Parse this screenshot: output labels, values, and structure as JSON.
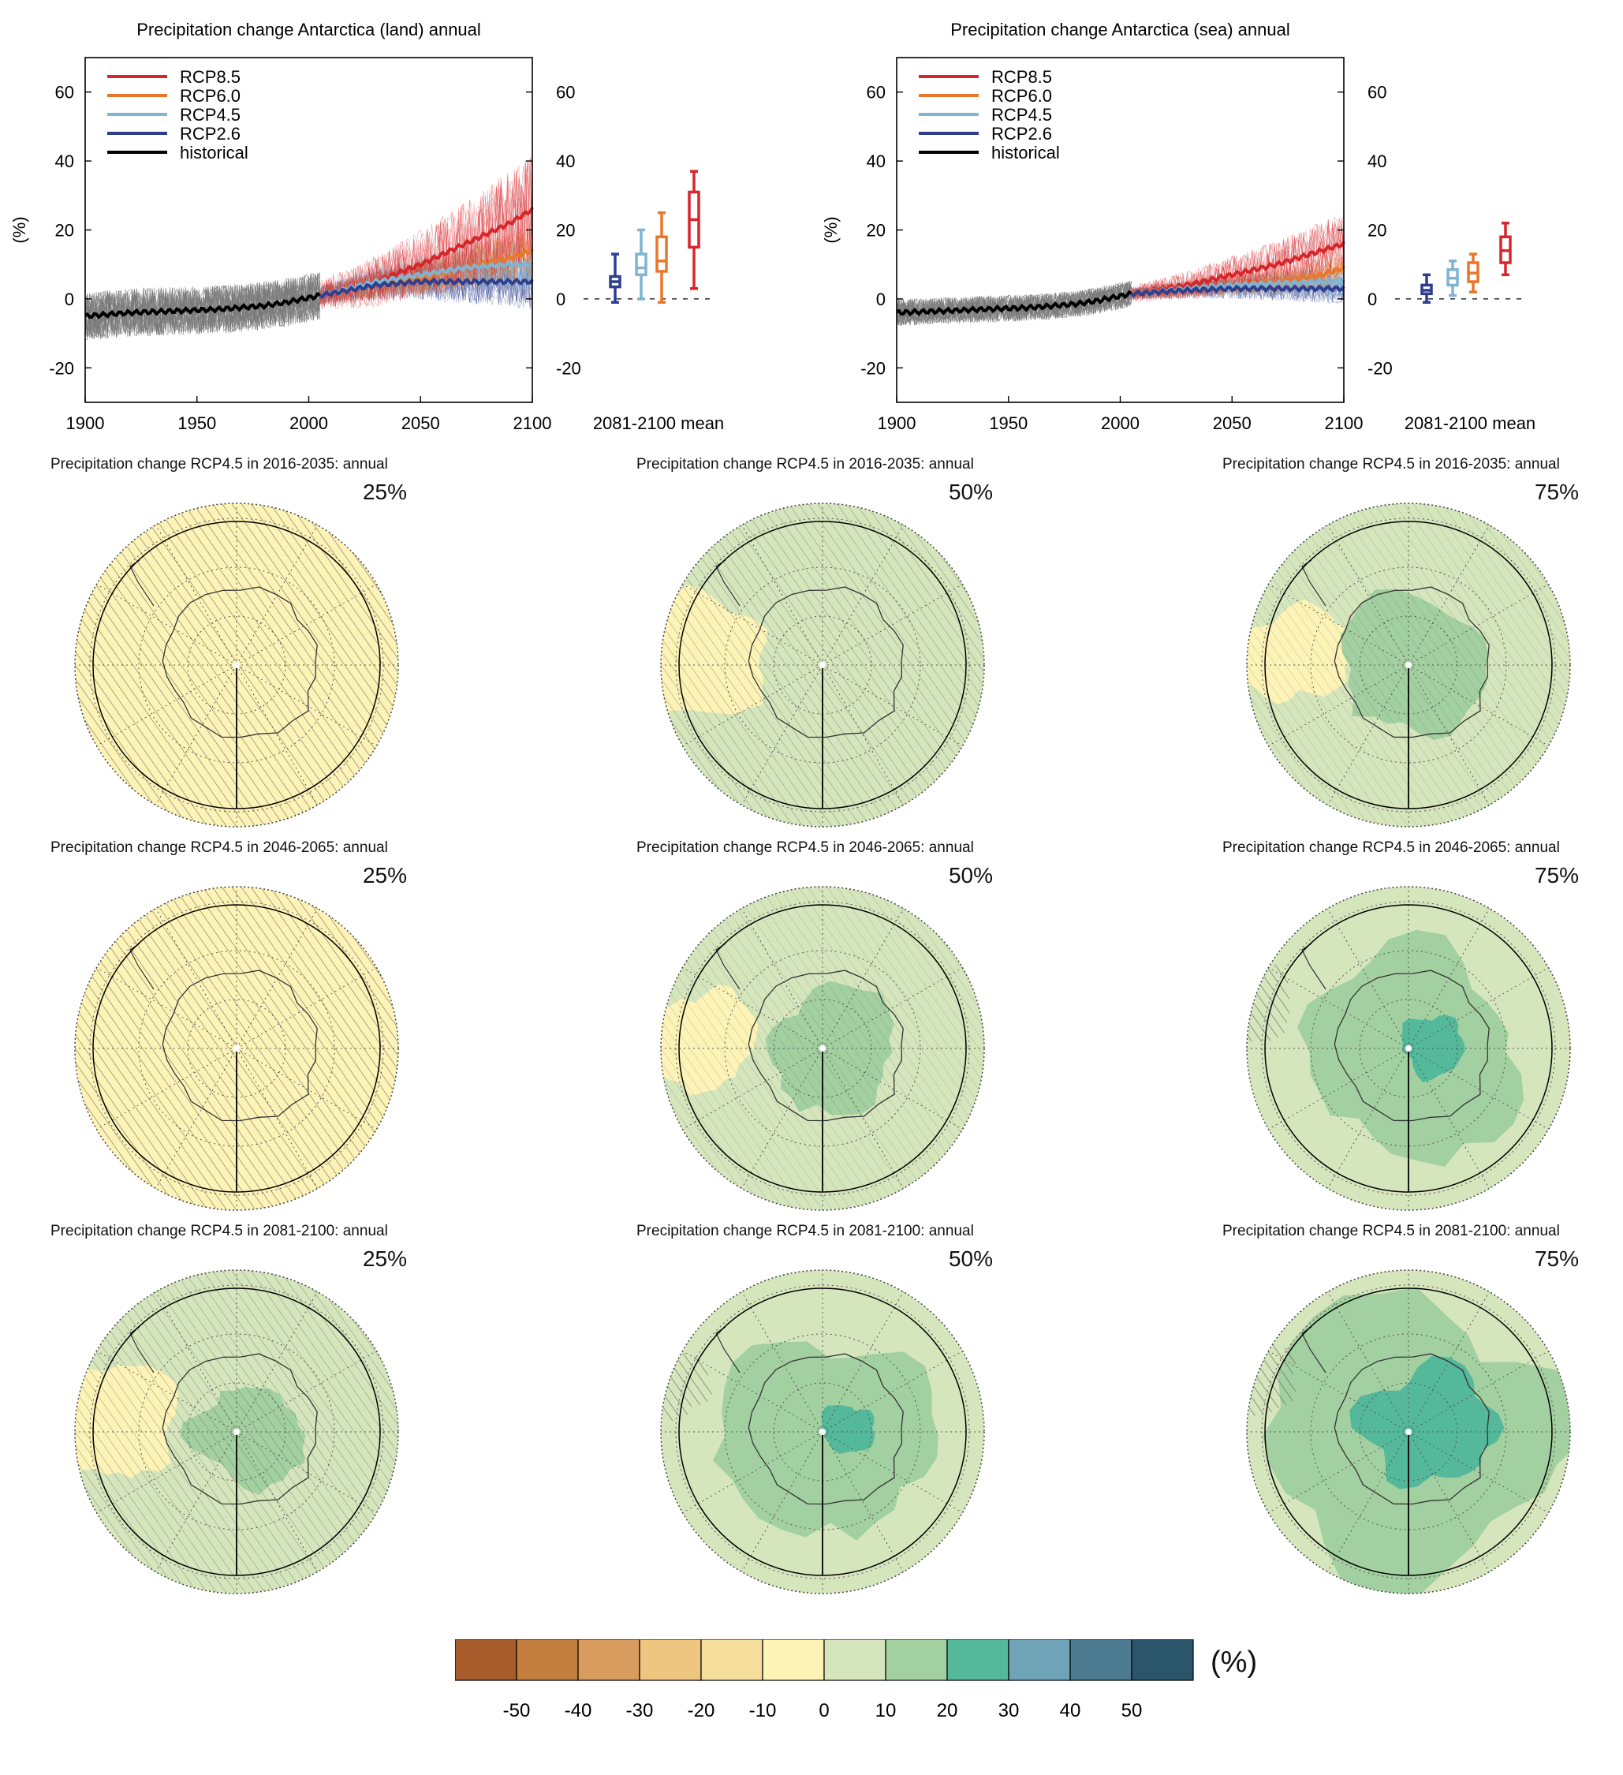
{
  "colors": {
    "rcp85": "#d7262b",
    "rcp60": "#e8772c",
    "rcp45": "#7fb4d4",
    "rcp26": "#2e3f8f",
    "historical": "#000000",
    "hist_ensemble": "#7a7a7a"
  },
  "chart_data": [
    {
      "type": "line",
      "title": "Precipitation change Antarctica (land) annual",
      "ylabel": "(%)",
      "xlim": [
        1900,
        2100
      ],
      "ylim": [
        -30,
        70
      ],
      "xticks": [
        1900,
        1950,
        2000,
        2050,
        2100
      ],
      "yticks": [
        -20,
        0,
        20,
        40,
        60
      ],
      "legend": {
        "placement": "top-left",
        "entries": [
          "RCP8.5",
          "RCP6.0",
          "RCP4.5",
          "RCP2.6",
          "historical"
        ]
      },
      "series": [
        {
          "name": "historical",
          "x": [
            1900,
            1920,
            1940,
            1960,
            1980,
            1990,
            2005
          ],
          "y": [
            -5,
            -4,
            -3.5,
            -3,
            -2,
            -1,
            1
          ]
        },
        {
          "name": "RCP8.5",
          "x": [
            2005,
            2030,
            2050,
            2070,
            2090,
            2100
          ],
          "y": [
            1,
            5,
            10,
            16,
            22,
            26
          ]
        },
        {
          "name": "RCP6.0",
          "x": [
            2005,
            2030,
            2050,
            2070,
            2090,
            2100
          ],
          "y": [
            1,
            4,
            6,
            9,
            12,
            14
          ]
        },
        {
          "name": "RCP4.5",
          "x": [
            2005,
            2030,
            2050,
            2070,
            2090,
            2100
          ],
          "y": [
            1,
            5,
            7,
            9,
            10,
            10
          ]
        },
        {
          "name": "RCP2.6",
          "x": [
            2005,
            2030,
            2050,
            2070,
            2090,
            2100
          ],
          "y": [
            1,
            4,
            5,
            5,
            5,
            5
          ]
        }
      ],
      "boxplot": {
        "label": "2081-2100 mean",
        "boxes": [
          {
            "name": "RCP2.6",
            "min": -1,
            "q1": 3.5,
            "median": 5,
            "q3": 6.5,
            "max": 13
          },
          {
            "name": "RCP4.5",
            "min": 0,
            "q1": 7,
            "median": 9,
            "q3": 13,
            "max": 20
          },
          {
            "name": "RCP6.0",
            "min": -1,
            "q1": 8,
            "median": 11,
            "q3": 18,
            "max": 25
          },
          {
            "name": "RCP8.5",
            "min": 3,
            "q1": 15,
            "median": 23,
            "q3": 31,
            "max": 37
          }
        ]
      }
    },
    {
      "type": "line",
      "title": "Precipitation change Antarctica (sea) annual",
      "ylabel": "(%)",
      "xlim": [
        1900,
        2100
      ],
      "ylim": [
        -30,
        70
      ],
      "xticks": [
        1900,
        1950,
        2000,
        2050,
        2100
      ],
      "yticks": [
        -20,
        0,
        20,
        40,
        60
      ],
      "legend": {
        "placement": "top-left",
        "entries": [
          "RCP8.5",
          "RCP6.0",
          "RCP4.5",
          "RCP2.6",
          "historical"
        ]
      },
      "series": [
        {
          "name": "historical",
          "x": [
            1900,
            1920,
            1940,
            1960,
            1980,
            1990,
            2005
          ],
          "y": [
            -4,
            -3.5,
            -3,
            -2.5,
            -1.5,
            -0.5,
            1.5
          ]
        },
        {
          "name": "RCP8.5",
          "x": [
            2005,
            2030,
            2050,
            2070,
            2090,
            2100
          ],
          "y": [
            1.5,
            4,
            7,
            10,
            14,
            16
          ]
        },
        {
          "name": "RCP6.0",
          "x": [
            2005,
            2030,
            2050,
            2070,
            2090,
            2100
          ],
          "y": [
            1.5,
            3,
            4,
            5,
            7,
            9
          ]
        },
        {
          "name": "RCP4.5",
          "x": [
            2005,
            2030,
            2050,
            2070,
            2090,
            2100
          ],
          "y": [
            1.5,
            3,
            4,
            4.5,
            5,
            5
          ]
        },
        {
          "name": "RCP2.6",
          "x": [
            2005,
            2030,
            2050,
            2070,
            2090,
            2100
          ],
          "y": [
            1.5,
            2.5,
            3,
            3,
            3,
            3
          ]
        }
      ],
      "boxplot": {
        "label": "2081-2100 mean",
        "boxes": [
          {
            "name": "RCP2.6",
            "min": -1,
            "q1": 1.5,
            "median": 2.5,
            "q3": 4,
            "max": 7
          },
          {
            "name": "RCP4.5",
            "min": 1,
            "q1": 4,
            "median": 6,
            "q3": 8.5,
            "max": 11
          },
          {
            "name": "RCP6.0",
            "min": 2,
            "q1": 5,
            "median": 7.5,
            "q3": 10.5,
            "max": 13
          },
          {
            "name": "RCP8.5",
            "min": 7,
            "q1": 10.5,
            "median": 14,
            "q3": 18,
            "max": 22
          }
        ]
      }
    },
    {
      "type": "heatmap",
      "colorbar": {
        "unit": "(%)",
        "ticks": [
          "-50",
          "-40",
          "-30",
          "-20",
          "-10",
          "0",
          "10",
          "20",
          "30",
          "40",
          "50"
        ],
        "colors": [
          "#a65c2b",
          "#c47e3e",
          "#d99c5f",
          "#eec67f",
          "#f5dd9c",
          "#fdf3b6",
          "#d5e5bc",
          "#a3d0a0",
          "#54b89a",
          "#6fa3b7",
          "#4b7a91",
          "#2b556b"
        ]
      },
      "maps": [
        {
          "title": "Precipitation change RCP4.5 in 2016-2035: annual",
          "percentile": "25%",
          "level": -0.5
        },
        {
          "title": "Precipitation change RCP4.5 in 2016-2035: annual",
          "percentile": "50%",
          "level": 0.1
        },
        {
          "title": "Precipitation change RCP4.5 in 2016-2035: annual",
          "percentile": "75%",
          "level": 0.6
        },
        {
          "title": "Precipitation change RCP4.5 in 2046-2065: annual",
          "percentile": "25%",
          "level": -0.1
        },
        {
          "title": "Precipitation change RCP4.5 in 2046-2065: annual",
          "percentile": "50%",
          "level": 0.5
        },
        {
          "title": "Precipitation change RCP4.5 in 2046-2065: annual",
          "percentile": "75%",
          "level": 1.1
        },
        {
          "title": "Precipitation change RCP4.5 in 2081-2100: annual",
          "percentile": "25%",
          "level": 0.3
        },
        {
          "title": "Precipitation change RCP4.5 in 2081-2100: annual",
          "percentile": "50%",
          "level": 1.0
        },
        {
          "title": "Precipitation change RCP4.5 in 2081-2100: annual",
          "percentile": "75%",
          "level": 1.6
        }
      ]
    }
  ]
}
